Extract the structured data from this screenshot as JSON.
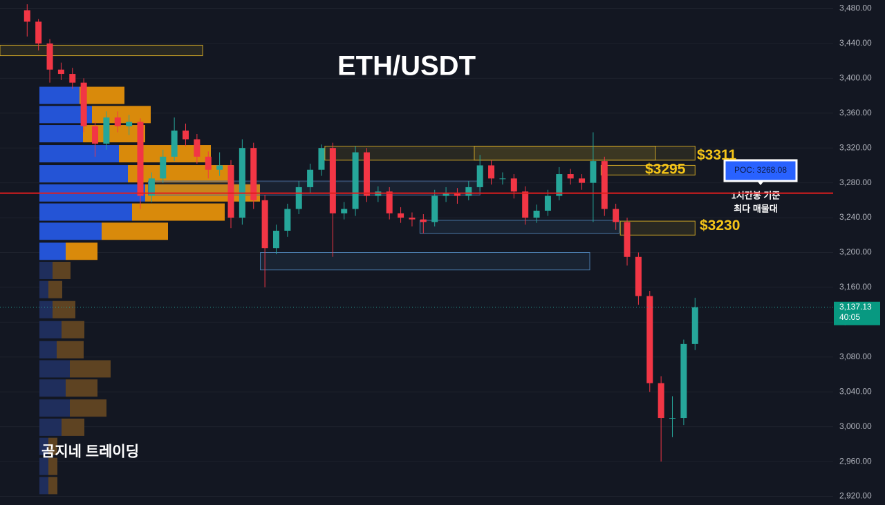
{
  "chart_data": {
    "type": "candlestick",
    "title": "ETH/USDT",
    "watermark": "곰지네 트레이딩",
    "note": [
      "1시간봉 기준",
      "최다 매물대"
    ],
    "up_color": "#26a69a",
    "down_color": "#f23645",
    "xlim": [
      -2.4,
      71.2
    ],
    "ylim": [
      2910.1,
      3489.9
    ],
    "yticks": [
      {
        "value": 3480,
        "label": "3,480.00"
      },
      {
        "value": 3440,
        "label": "3,440.00"
      },
      {
        "value": 3400,
        "label": "3,400.00"
      },
      {
        "value": 3360,
        "label": "3,360.00"
      },
      {
        "value": 3320,
        "label": "3,320.00"
      },
      {
        "value": 3280,
        "label": "3,280.00"
      },
      {
        "value": 3240,
        "label": "3,240.00"
      },
      {
        "value": 3200,
        "label": "3,200.00"
      },
      {
        "value": 3160,
        "label": "3,160.00"
      },
      {
        "value": 3120,
        "label": "3,120.00"
      },
      {
        "value": 3080,
        "label": "3,080.00"
      },
      {
        "value": 3040,
        "label": "3,040.00"
      },
      {
        "value": 3000,
        "label": "3,000.00"
      },
      {
        "value": 2960,
        "label": "2,960.00"
      },
      {
        "value": 2920,
        "label": "2,920.00"
      }
    ],
    "grid": true,
    "ohlc": [
      [
        3478,
        3485,
        3448,
        3465
      ],
      [
        3465,
        3468,
        3432,
        3440
      ],
      [
        3440,
        3445,
        3395,
        3410
      ],
      [
        3410,
        3418,
        3398,
        3405
      ],
      [
        3405,
        3412,
        3388,
        3395
      ],
      [
        3395,
        3400,
        3338,
        3345
      ],
      [
        3345,
        3350,
        3310,
        3325
      ],
      [
        3325,
        3362,
        3318,
        3355
      ],
      [
        3355,
        3362,
        3338,
        3345
      ],
      [
        3345,
        3358,
        3335,
        3350
      ],
      [
        3350,
        3354,
        3250,
        3265
      ],
      [
        3265,
        3292,
        3258,
        3285
      ],
      [
        3285,
        3318,
        3280,
        3310
      ],
      [
        3310,
        3355,
        3305,
        3340
      ],
      [
        3340,
        3348,
        3322,
        3330
      ],
      [
        3330,
        3336,
        3302,
        3310
      ],
      [
        3310,
        3316,
        3285,
        3295
      ],
      [
        3295,
        3315,
        3288,
        3300
      ],
      [
        3300,
        3306,
        3228,
        3240
      ],
      [
        3240,
        3330,
        3232,
        3320
      ],
      [
        3320,
        3326,
        3250,
        3260
      ],
      [
        3260,
        3266,
        3160,
        3205
      ],
      [
        3205,
        3232,
        3198,
        3225
      ],
      [
        3225,
        3256,
        3218,
        3250
      ],
      [
        3250,
        3282,
        3244,
        3275
      ],
      [
        3275,
        3302,
        3268,
        3295
      ],
      [
        3295,
        3324,
        3288,
        3320
      ],
      [
        3320,
        3326,
        3195,
        3245
      ],
      [
        3245,
        3258,
        3238,
        3250
      ],
      [
        3250,
        3322,
        3242,
        3315
      ],
      [
        3315,
        3320,
        3258,
        3265
      ],
      [
        3265,
        3276,
        3258,
        3270
      ],
      [
        3270,
        3275,
        3238,
        3245
      ],
      [
        3245,
        3252,
        3234,
        3240
      ],
      [
        3240,
        3246,
        3230,
        3238
      ],
      [
        3238,
        3244,
        3222,
        3235
      ],
      [
        3235,
        3272,
        3230,
        3265
      ],
      [
        3265,
        3275,
        3258,
        3268
      ],
      [
        3268,
        3274,
        3256,
        3265
      ],
      [
        3265,
        3282,
        3260,
        3275
      ],
      [
        3275,
        3312,
        3270,
        3300
      ],
      [
        3300,
        3306,
        3278,
        3285
      ],
      [
        3285,
        3292,
        3278,
        3285
      ],
      [
        3285,
        3290,
        3262,
        3270
      ],
      [
        3270,
        3276,
        3232,
        3240
      ],
      [
        3240,
        3255,
        3234,
        3248
      ],
      [
        3248,
        3272,
        3242,
        3265
      ],
      [
        3265,
        3298,
        3260,
        3290
      ],
      [
        3290,
        3296,
        3278,
        3285
      ],
      [
        3285,
        3290,
        3272,
        3280
      ],
      [
        3280,
        3338,
        3235,
        3305
      ],
      [
        3305,
        3310,
        3242,
        3250
      ],
      [
        3250,
        3256,
        3226,
        3235
      ],
      [
        3235,
        3240,
        3185,
        3195
      ],
      [
        3195,
        3200,
        3140,
        3150
      ],
      [
        3150,
        3156,
        3040,
        3050
      ],
      [
        3050,
        3058,
        2960,
        3010
      ],
      [
        3010,
        3035,
        2988,
        3010
      ],
      [
        3010,
        3100,
        3002,
        3095
      ],
      [
        3095,
        3148,
        3088,
        3137.13
      ]
    ],
    "last_price_label": "3,137.13",
    "countdown": "40:05",
    "poc": {
      "value": 3268.08,
      "label": "POC: 3268.08",
      "color": "#e01e1e"
    },
    "volume_profile": {
      "prices": [
        3380,
        3358,
        3336,
        3313,
        3290,
        3268,
        3246,
        3224,
        3201,
        3179,
        3157,
        3134,
        3111,
        3088,
        3066,
        3044,
        3021,
        2999,
        2977,
        2954,
        2932
      ],
      "value_area_low": 3201,
      "series": [
        {
          "color": "#2454d6",
          "dim_color": "#1f2e5c",
          "values": [
            58,
            76,
            63,
            115,
            128,
            153,
            134,
            90,
            38,
            19,
            13,
            19,
            32,
            25,
            44,
            38,
            44,
            32,
            13,
            13,
            13
          ]
        },
        {
          "color": "#d98a0b",
          "dim_color": "#5e4322",
          "values": [
            65,
            85,
            90,
            133,
            153,
            166,
            134,
            96,
            46,
            26,
            20,
            33,
            33,
            39,
            59,
            46,
            53,
            33,
            13,
            13,
            13
          ]
        }
      ]
    },
    "zones": [
      {
        "ymin": 3426,
        "ymax": 3438,
        "xmin": -2.4,
        "xmax": 15.5,
        "color": "#c9a227"
      },
      {
        "ymin": 3266,
        "ymax": 3282,
        "xmin": 10.7,
        "xmax": 40,
        "color": "#4a6a9a"
      },
      {
        "ymin": 3306,
        "ymax": 3322,
        "xmin": 26.3,
        "xmax": 59,
        "color": "#c9a227"
      },
      {
        "ymin": 3306,
        "ymax": 3322,
        "xmin": 39.5,
        "xmax": 55.5,
        "color": "#c9a227"
      },
      {
        "ymin": 3289,
        "ymax": 3300,
        "xmin": 50.7,
        "xmax": 59,
        "color": "#c9a227"
      },
      {
        "ymin": 3222,
        "ymax": 3237,
        "xmin": 34.7,
        "xmax": 52.3,
        "color": "#4a7aaa"
      },
      {
        "ymin": 3220,
        "ymax": 3236,
        "xmin": 52.4,
        "xmax": 59,
        "color": "#c9a227"
      },
      {
        "ymin": 3180,
        "ymax": 3200,
        "xmin": 20.6,
        "xmax": 49.7,
        "color": "#4a7aaa"
      }
    ],
    "annotations": [
      {
        "label": "$3311",
        "value": 3311
      },
      {
        "label": "$3295",
        "value": 3295
      },
      {
        "label": "$3230",
        "value": 3230
      }
    ]
  }
}
